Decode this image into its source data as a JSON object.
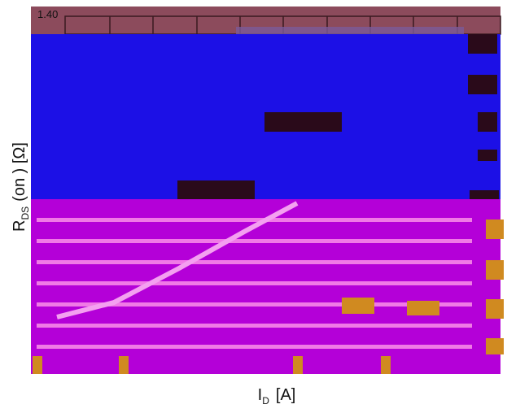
{
  "top_label": "1.40",
  "y_axis": {
    "main": "R",
    "sub": "DS",
    "rest": "(on ) [Ω]"
  },
  "x_axis": {
    "main": "I",
    "sub": "D",
    "rest": "[A]"
  }
}
